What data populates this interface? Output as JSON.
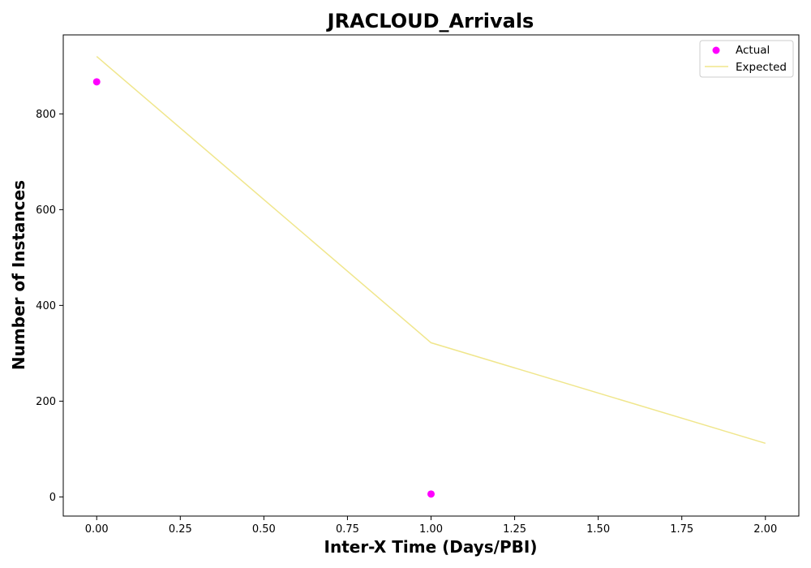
{
  "chart_data": {
    "type": "scatter",
    "title": "JRACLOUD_Arrivals",
    "xlabel": "Inter-X Time (Days/PBI)",
    "ylabel": "Number of Instances",
    "xlim": [
      -0.1,
      2.1
    ],
    "ylim": [
      -40,
      965
    ],
    "x_ticks": [
      0.0,
      0.25,
      0.5,
      0.75,
      1.0,
      1.25,
      1.5,
      1.75,
      2.0
    ],
    "x_tick_labels": [
      "0.00",
      "0.25",
      "0.50",
      "0.75",
      "1.00",
      "1.25",
      "1.50",
      "1.75",
      "2.00"
    ],
    "y_ticks": [
      0,
      200,
      400,
      600,
      800
    ],
    "y_tick_labels": [
      "0",
      "200",
      "400",
      "600",
      "800"
    ],
    "grid": false,
    "legend_position": "top-right",
    "series": [
      {
        "name": "Actual",
        "kind": "scatter",
        "color": "#ff00ff",
        "x": [
          0,
          1
        ],
        "y": [
          867,
          6
        ]
      },
      {
        "name": "Expected",
        "kind": "line",
        "color": "#f0e68c",
        "x": [
          0,
          1,
          2
        ],
        "y": [
          920,
          322,
          112
        ]
      }
    ]
  }
}
